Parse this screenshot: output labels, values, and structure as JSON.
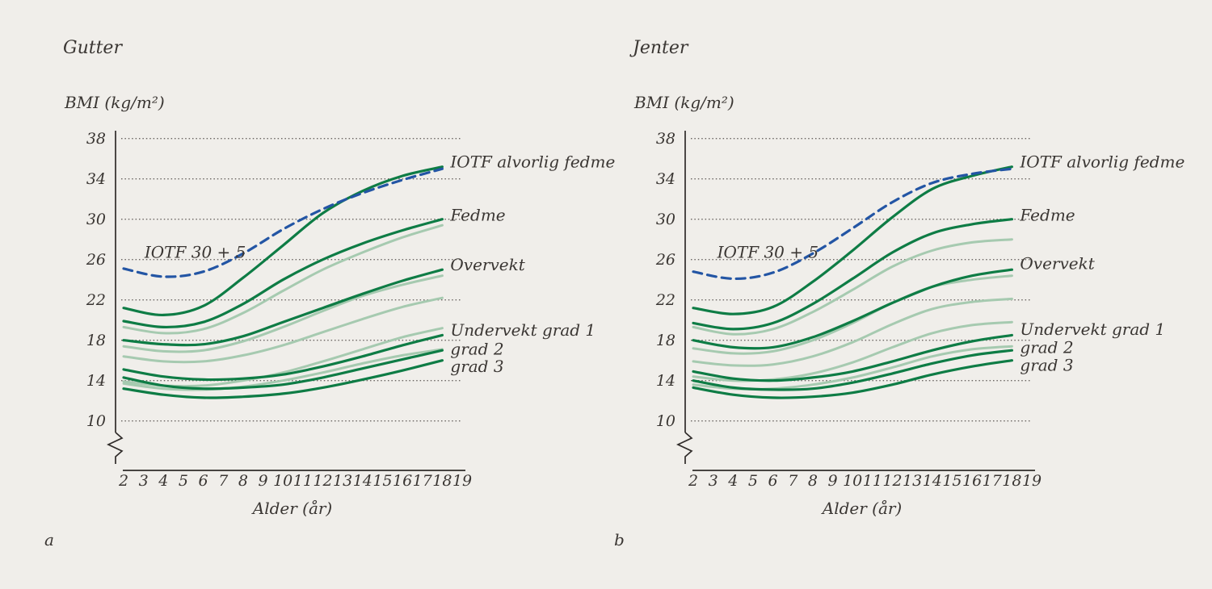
{
  "colors": {
    "background": "#f0eeea",
    "dark_green": "#0e7c45",
    "light_green": "#a6cab0",
    "dashed_blue": "#2355a4",
    "axis": "#2f2b29",
    "grid_dots": "#6a6562",
    "text": "#3a3633"
  },
  "chart_data": [
    {
      "type": "line",
      "panel_letter": "a",
      "title": "Gutter",
      "ylabel": "BMI (kg/m²)",
      "xlabel": "Alder (år)",
      "y_ticks": [
        38,
        34,
        30,
        26,
        22,
        18,
        14,
        10
      ],
      "x_ticks": [
        2,
        3,
        4,
        5,
        6,
        7,
        8,
        9,
        10,
        11,
        12,
        13,
        14,
        15,
        16,
        17,
        18,
        19
      ],
      "ylim": [
        10,
        38
      ],
      "xlim": [
        2,
        19
      ],
      "axis_break": true,
      "grid": "dotted-horizontal",
      "x": [
        2,
        4,
        6,
        8,
        10,
        12,
        14,
        16,
        18
      ],
      "series": [
        {
          "name": "iotf-30-plus-5",
          "style": "dashed-blue",
          "label": "IOTF 30 + 5",
          "label_pos": "inline",
          "label_age": 3.05,
          "label_bmi": 26.75,
          "values": [
            25.1,
            24.3,
            24.8,
            26.6,
            29.0,
            31.0,
            32.6,
            33.9,
            35.0
          ]
        },
        {
          "name": "iotf-alvorlig-fedme",
          "style": "dark-green",
          "label": "IOTF alvorlig fedme",
          "label_pos": "end",
          "label_bmi": 35.7,
          "values": [
            21.2,
            20.5,
            21.4,
            24.2,
            27.4,
            30.6,
            32.8,
            34.3,
            35.2
          ]
        },
        {
          "name": "fedme",
          "style": "dark-green",
          "label": "Fedme",
          "label_pos": "end",
          "label_bmi": 30.4,
          "values": [
            19.9,
            19.3,
            19.8,
            21.6,
            24.0,
            26.0,
            27.6,
            28.9,
            30.0
          ]
        },
        {
          "name": "overvekt",
          "style": "dark-green",
          "label": "Overvekt",
          "label_pos": "end",
          "label_bmi": 25.5,
          "values": [
            18.0,
            17.6,
            17.6,
            18.4,
            19.8,
            21.2,
            22.6,
            23.9,
            25.0
          ]
        },
        {
          "name": "undervekt-grad-1",
          "style": "dark-green",
          "label": "Undervekt grad 1",
          "label_pos": "end",
          "label_bmi": 19.0,
          "values": [
            15.1,
            14.4,
            14.1,
            14.2,
            14.6,
            15.4,
            16.4,
            17.5,
            18.5
          ]
        },
        {
          "name": "undervekt-grad-2",
          "style": "dark-green",
          "label": "grad 2",
          "label_pos": "end",
          "label_bmi": 17.15,
          "values": [
            14.3,
            13.5,
            13.2,
            13.3,
            13.6,
            14.3,
            15.2,
            16.1,
            17.0
          ]
        },
        {
          "name": "undervekt-grad-3",
          "style": "dark-green",
          "label": "grad 3",
          "label_pos": "end",
          "label_bmi": 15.4,
          "values": [
            13.2,
            12.6,
            12.3,
            12.4,
            12.7,
            13.3,
            14.1,
            15.0,
            16.0
          ]
        },
        {
          "name": "reference-curve-1",
          "style": "light-green",
          "values": [
            19.3,
            18.7,
            19.1,
            20.7,
            22.9,
            25.0,
            26.7,
            28.2,
            29.4
          ]
        },
        {
          "name": "reference-curve-2",
          "style": "light-green",
          "values": [
            17.4,
            16.9,
            17.0,
            17.9,
            19.3,
            20.9,
            22.4,
            23.5,
            24.4
          ]
        },
        {
          "name": "reference-curve-3",
          "style": "light-green",
          "values": [
            16.4,
            15.9,
            15.9,
            16.5,
            17.5,
            18.8,
            20.1,
            21.3,
            22.2
          ]
        },
        {
          "name": "reference-curve-4",
          "style": "light-green",
          "values": [
            13.9,
            13.5,
            13.5,
            14.0,
            14.8,
            15.9,
            17.1,
            18.3,
            19.2
          ]
        },
        {
          "name": "reference-curve-5",
          "style": "light-green",
          "values": [
            13.7,
            13.2,
            13.1,
            13.4,
            14.0,
            14.8,
            15.7,
            16.5,
            17.1
          ]
        }
      ]
    },
    {
      "type": "line",
      "panel_letter": "b",
      "title": "Jenter",
      "ylabel": "BMI (kg/m²)",
      "xlabel": "Alder (år)",
      "y_ticks": [
        38,
        34,
        30,
        26,
        22,
        18,
        14,
        10
      ],
      "x_ticks": [
        2,
        3,
        4,
        5,
        6,
        7,
        8,
        9,
        10,
        11,
        12,
        13,
        14,
        15,
        16,
        17,
        18,
        19
      ],
      "ylim": [
        10,
        38
      ],
      "xlim": [
        2,
        19
      ],
      "axis_break": true,
      "grid": "dotted-horizontal",
      "x": [
        2,
        4,
        6,
        8,
        10,
        12,
        14,
        16,
        18
      ],
      "series": [
        {
          "name": "iotf-30-plus-5",
          "style": "dashed-blue",
          "label": "IOTF 30 + 5",
          "label_pos": "inline",
          "label_age": 3.2,
          "label_bmi": 26.75,
          "values": [
            24.8,
            24.1,
            24.7,
            26.6,
            29.1,
            31.7,
            33.6,
            34.5,
            35.0
          ]
        },
        {
          "name": "iotf-alvorlig-fedme",
          "style": "dark-green",
          "label": "IOTF alvorlig fedme",
          "label_pos": "end",
          "label_bmi": 35.7,
          "values": [
            21.2,
            20.6,
            21.3,
            23.8,
            26.9,
            30.2,
            33.0,
            34.3,
            35.2
          ]
        },
        {
          "name": "fedme",
          "style": "dark-green",
          "label": "Fedme",
          "label_pos": "end",
          "label_bmi": 30.4,
          "values": [
            19.7,
            19.1,
            19.7,
            21.6,
            24.1,
            26.7,
            28.6,
            29.5,
            30.0
          ]
        },
        {
          "name": "overvekt",
          "style": "dark-green",
          "label": "Overvekt",
          "label_pos": "end",
          "label_bmi": 25.6,
          "values": [
            18.0,
            17.3,
            17.3,
            18.3,
            19.9,
            21.7,
            23.3,
            24.4,
            25.0
          ]
        },
        {
          "name": "undervekt-grad-1",
          "style": "dark-green",
          "label": "Undervekt grad 1",
          "label_pos": "end",
          "label_bmi": 19.1,
          "values": [
            14.9,
            14.2,
            14.0,
            14.3,
            14.9,
            15.9,
            17.0,
            17.9,
            18.5
          ]
        },
        {
          "name": "undervekt-grad-2",
          "style": "dark-green",
          "label": "grad 2",
          "label_pos": "end",
          "label_bmi": 17.3,
          "values": [
            14.0,
            13.3,
            13.1,
            13.2,
            13.8,
            14.7,
            15.7,
            16.5,
            17.0
          ]
        },
        {
          "name": "undervekt-grad-3",
          "style": "dark-green",
          "label": "grad 3",
          "label_pos": "end",
          "label_bmi": 15.55,
          "values": [
            13.3,
            12.6,
            12.3,
            12.4,
            12.8,
            13.6,
            14.6,
            15.4,
            16.0
          ]
        },
        {
          "name": "reference-curve-1",
          "style": "light-green",
          "values": [
            19.3,
            18.6,
            19.1,
            20.8,
            23.0,
            25.3,
            26.9,
            27.7,
            28.0
          ]
        },
        {
          "name": "reference-curve-2",
          "style": "light-green",
          "values": [
            17.2,
            16.7,
            16.9,
            18.0,
            19.7,
            21.7,
            23.3,
            24.0,
            24.4
          ]
        },
        {
          "name": "reference-curve-3",
          "style": "light-green",
          "values": [
            15.9,
            15.5,
            15.6,
            16.4,
            17.8,
            19.6,
            21.1,
            21.8,
            22.1
          ]
        },
        {
          "name": "reference-curve-4",
          "style": "light-green",
          "values": [
            14.4,
            14.0,
            14.1,
            14.7,
            15.8,
            17.3,
            18.7,
            19.5,
            19.8
          ]
        },
        {
          "name": "reference-curve-5",
          "style": "light-green",
          "values": [
            13.6,
            13.2,
            13.2,
            13.6,
            14.3,
            15.3,
            16.4,
            17.1,
            17.4
          ]
        }
      ]
    }
  ]
}
